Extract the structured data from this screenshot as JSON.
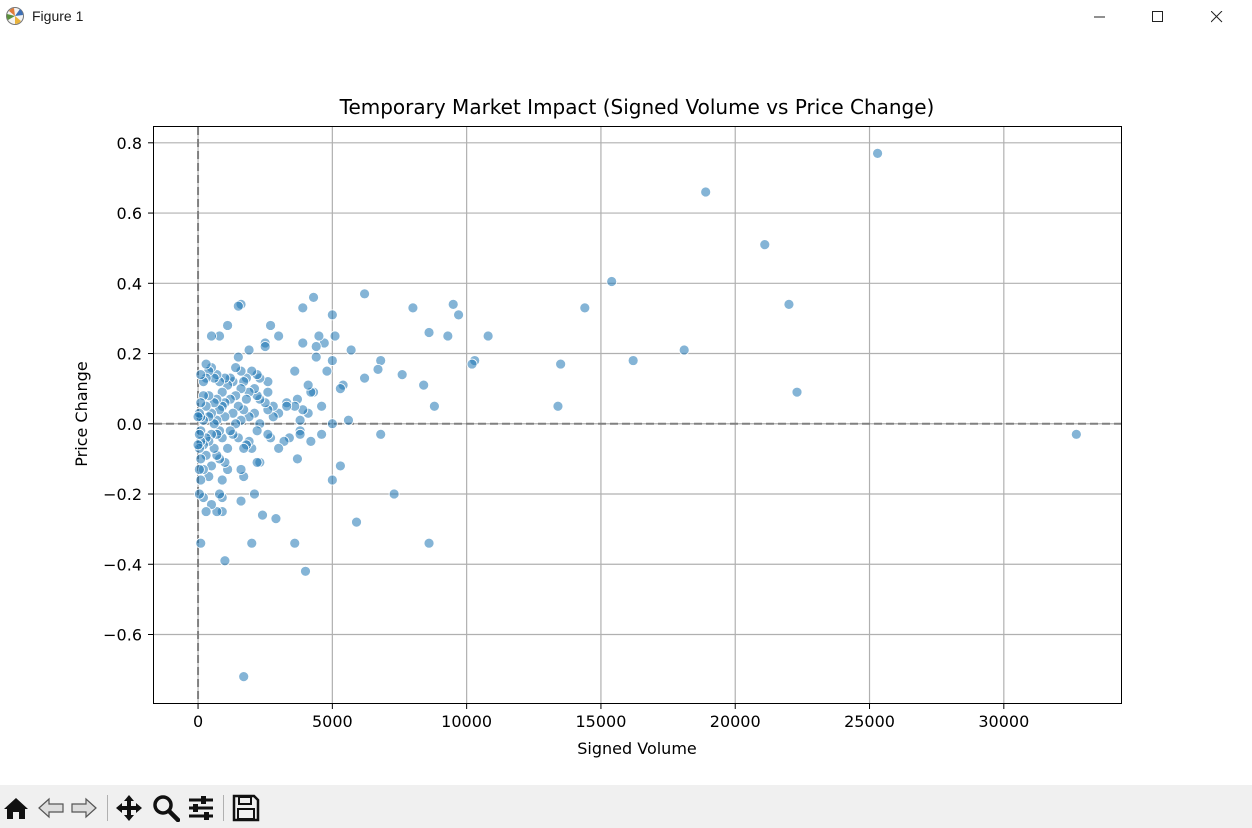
{
  "window": {
    "title": "Figure 1"
  },
  "toolbar": {
    "buttons": [
      {
        "name": "home",
        "icon": "home-icon"
      },
      {
        "name": "back",
        "icon": "back-arrow-icon"
      },
      {
        "name": "forward",
        "icon": "forward-arrow-icon"
      },
      {
        "name": "pan",
        "icon": "move-icon"
      },
      {
        "name": "zoom",
        "icon": "zoom-icon"
      },
      {
        "name": "configure",
        "icon": "sliders-icon"
      },
      {
        "name": "save",
        "icon": "save-icon"
      }
    ]
  },
  "chart_data": {
    "type": "scatter",
    "title": "Temporary Market Impact (Signed Volume vs Price Change)",
    "xlabel": "Signed Volume",
    "ylabel": "Price Change",
    "xlim": [
      -1640,
      34400
    ],
    "ylim": [
      -0.795,
      0.845
    ],
    "xticks": [
      0,
      5000,
      10000,
      15000,
      20000,
      25000,
      30000
    ],
    "xtick_labels": [
      "0",
      "5000",
      "10000",
      "15000",
      "20000",
      "25000",
      "30000"
    ],
    "yticks": [
      0.8,
      0.6,
      0.4,
      0.2,
      0.0,
      -0.2,
      -0.4,
      -0.6
    ],
    "ytick_labels": [
      "0.8",
      "0.6",
      "0.4",
      "0.2",
      "0.0",
      "−0.2",
      "−0.4",
      "−0.6"
    ],
    "grid": true,
    "reference_lines": {
      "x": 0,
      "y": 0,
      "style": "dashed",
      "color": "#808080"
    },
    "marker_color": "#1f77b4",
    "points": [
      [
        25300,
        0.77
      ],
      [
        18900,
        0.66
      ],
      [
        21100,
        0.51
      ],
      [
        15400,
        0.405
      ],
      [
        22000,
        0.34
      ],
      [
        14400,
        0.33
      ],
      [
        22300,
        0.09
      ],
      [
        16200,
        0.18
      ],
      [
        18100,
        0.21
      ],
      [
        13500,
        0.17
      ],
      [
        13400,
        0.05
      ],
      [
        32700,
        -0.03
      ],
      [
        10800,
        0.25
      ],
      [
        10300,
        0.18
      ],
      [
        10200,
        0.17
      ],
      [
        9700,
        0.31
      ],
      [
        9500,
        0.34
      ],
      [
        9300,
        0.25
      ],
      [
        8800,
        0.05
      ],
      [
        8600,
        0.26
      ],
      [
        8600,
        -0.34
      ],
      [
        8400,
        0.11
      ],
      [
        8000,
        0.33
      ],
      [
        7600,
        0.14
      ],
      [
        7300,
        -0.2
      ],
      [
        6800,
        0.18
      ],
      [
        6700,
        0.155
      ],
      [
        6800,
        -0.03
      ],
      [
        6200,
        0.37
      ],
      [
        6200,
        0.13
      ],
      [
        5900,
        -0.28
      ],
      [
        5700,
        0.21
      ],
      [
        5600,
        0.01
      ],
      [
        5400,
        0.11
      ],
      [
        5300,
        0.1
      ],
      [
        5300,
        -0.12
      ],
      [
        5100,
        0.25
      ],
      [
        5000,
        0.31
      ],
      [
        5000,
        0.18
      ],
      [
        5000,
        0.0
      ],
      [
        5000,
        -0.16
      ],
      [
        4800,
        0.15
      ],
      [
        4700,
        0.23
      ],
      [
        4600,
        0.05
      ],
      [
        4600,
        -0.03
      ],
      [
        4500,
        0.25
      ],
      [
        4400,
        0.22
      ],
      [
        4400,
        0.19
      ],
      [
        4300,
        0.36
      ],
      [
        4300,
        0.09
      ],
      [
        4200,
        0.09
      ],
      [
        4200,
        -0.05
      ],
      [
        4100,
        0.11
      ],
      [
        4100,
        0.03
      ],
      [
        4000,
        -0.42
      ],
      [
        3900,
        0.33
      ],
      [
        3900,
        0.23
      ],
      [
        3900,
        0.04
      ],
      [
        3800,
        0.01
      ],
      [
        3800,
        -0.02
      ],
      [
        3800,
        -0.03
      ],
      [
        3700,
        0.07
      ],
      [
        3700,
        -0.1
      ],
      [
        3600,
        0.15
      ],
      [
        3600,
        0.05
      ],
      [
        3600,
        -0.34
      ],
      [
        3400,
        -0.04
      ],
      [
        3300,
        0.06
      ],
      [
        3300,
        0.05
      ],
      [
        3200,
        -0.05
      ],
      [
        3000,
        0.25
      ],
      [
        3000,
        0.03
      ],
      [
        3000,
        -0.07
      ],
      [
        2900,
        -0.27
      ],
      [
        2800,
        0.05
      ],
      [
        2800,
        0.02
      ],
      [
        2700,
        0.28
      ],
      [
        2700,
        -0.04
      ],
      [
        2600,
        0.12
      ],
      [
        2600,
        0.09
      ],
      [
        2600,
        0.04
      ],
      [
        2600,
        -0.03
      ],
      [
        2500,
        0.23
      ],
      [
        2500,
        0.22
      ],
      [
        2500,
        0.06
      ],
      [
        2400,
        -0.26
      ],
      [
        2300,
        0.13
      ],
      [
        2300,
        0.07
      ],
      [
        2300,
        0.0
      ],
      [
        2300,
        -0.11
      ],
      [
        2200,
        0.14
      ],
      [
        2200,
        0.08
      ],
      [
        2200,
        -0.02
      ],
      [
        2200,
        -0.11
      ],
      [
        2100,
        0.1
      ],
      [
        2100,
        0.03
      ],
      [
        2100,
        -0.2
      ],
      [
        2000,
        0.15
      ],
      [
        2000,
        -0.07
      ],
      [
        2000,
        -0.34
      ],
      [
        1900,
        0.21
      ],
      [
        1900,
        0.09
      ],
      [
        1900,
        0.02
      ],
      [
        1900,
        -0.05
      ],
      [
        1800,
        0.13
      ],
      [
        1800,
        0.07
      ],
      [
        1800,
        -0.06
      ],
      [
        1700,
        0.12
      ],
      [
        1700,
        0.04
      ],
      [
        1700,
        -0.07
      ],
      [
        1700,
        -0.15
      ],
      [
        1700,
        -0.72
      ],
      [
        1600,
        0.34
      ],
      [
        1600,
        0.15
      ],
      [
        1600,
        0.1
      ],
      [
        1600,
        0.01
      ],
      [
        1600,
        -0.13
      ],
      [
        1600,
        -0.22
      ],
      [
        1500,
        0.335
      ],
      [
        1500,
        0.19
      ],
      [
        1500,
        0.05
      ],
      [
        1500,
        -0.04
      ],
      [
        1400,
        0.16
      ],
      [
        1400,
        0.08
      ],
      [
        1400,
        0.0
      ],
      [
        1300,
        0.12
      ],
      [
        1300,
        0.03
      ],
      [
        1300,
        -0.03
      ],
      [
        1200,
        0.13
      ],
      [
        1200,
        0.07
      ],
      [
        1200,
        -0.02
      ],
      [
        1100,
        0.28
      ],
      [
        1100,
        0.11
      ],
      [
        1100,
        -0.07
      ],
      [
        1100,
        -0.13
      ],
      [
        1000,
        0.13
      ],
      [
        1000,
        0.06
      ],
      [
        1000,
        0.02
      ],
      [
        1000,
        -0.11
      ],
      [
        1000,
        -0.39
      ],
      [
        900,
        0.09
      ],
      [
        900,
        0.05
      ],
      [
        900,
        -0.04
      ],
      [
        900,
        -0.16
      ],
      [
        900,
        -0.21
      ],
      [
        900,
        -0.25
      ],
      [
        800,
        0.25
      ],
      [
        800,
        0.12
      ],
      [
        800,
        0.04
      ],
      [
        800,
        -0.02
      ],
      [
        800,
        -0.1
      ],
      [
        800,
        -0.2
      ],
      [
        700,
        0.14
      ],
      [
        700,
        0.07
      ],
      [
        700,
        0.01
      ],
      [
        700,
        -0.03
      ],
      [
        700,
        -0.09
      ],
      [
        700,
        -0.25
      ],
      [
        600,
        0.13
      ],
      [
        600,
        0.06
      ],
      [
        600,
        0.0
      ],
      [
        600,
        -0.07
      ],
      [
        500,
        0.25
      ],
      [
        500,
        0.16
      ],
      [
        500,
        0.03
      ],
      [
        500,
        -0.03
      ],
      [
        500,
        -0.12
      ],
      [
        500,
        -0.23
      ],
      [
        400,
        0.15
      ],
      [
        400,
        0.08
      ],
      [
        400,
        0.02
      ],
      [
        400,
        -0.05
      ],
      [
        400,
        -0.15
      ],
      [
        300,
        0.17
      ],
      [
        300,
        0.13
      ],
      [
        300,
        0.05
      ],
      [
        300,
        -0.04
      ],
      [
        300,
        -0.09
      ],
      [
        300,
        -0.25
      ],
      [
        200,
        0.12
      ],
      [
        200,
        0.08
      ],
      [
        200,
        0.01
      ],
      [
        200,
        -0.06
      ],
      [
        200,
        -0.13
      ],
      [
        200,
        -0.21
      ],
      [
        100,
        0.14
      ],
      [
        100,
        0.06
      ],
      [
        100,
        0.02
      ],
      [
        100,
        -0.02
      ],
      [
        100,
        -0.05
      ],
      [
        100,
        -0.1
      ],
      [
        100,
        -0.16
      ],
      [
        100,
        -0.34
      ],
      [
        50,
        0.03
      ],
      [
        50,
        -0.03
      ],
      [
        50,
        -0.07
      ],
      [
        50,
        -0.13
      ],
      [
        50,
        -0.2
      ],
      [
        0,
        0.02
      ],
      [
        0,
        -0.06
      ]
    ]
  }
}
